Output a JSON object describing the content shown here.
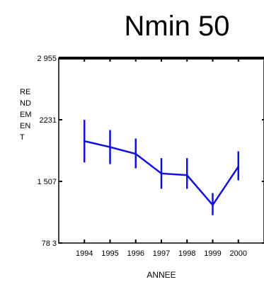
{
  "chart_data": {
    "type": "line",
    "title": "Nmin 50",
    "xlabel": "ANNEE",
    "ylabel_lines": [
      "RE",
      "ND",
      "EM",
      "EN",
      "T"
    ],
    "categories": [
      "1994",
      "1995",
      "1996",
      "1997",
      "1998",
      "1999",
      "2000"
    ],
    "x": [
      1994,
      1995,
      1996,
      1997,
      1998,
      1999,
      2000
    ],
    "y_ticks": [
      "2 955",
      "2231",
      "1 507",
      "78 3"
    ],
    "y_tick_values": [
      2955,
      2231,
      1507,
      783
    ],
    "ylim": [
      783,
      2955
    ],
    "xlim": [
      1993,
      2001
    ],
    "grid": false,
    "series": [
      {
        "values": [
          1980,
          1910,
          1830,
          1600,
          1580,
          1230,
          1680
        ],
        "error_low": [
          1730,
          1710,
          1660,
          1420,
          1420,
          1110,
          1520
        ],
        "error_high": [
          2230,
          2110,
          2010,
          1780,
          1780,
          1370,
          1860
        ]
      }
    ],
    "line_color": "#1010e0",
    "axis_color": "#000000"
  }
}
